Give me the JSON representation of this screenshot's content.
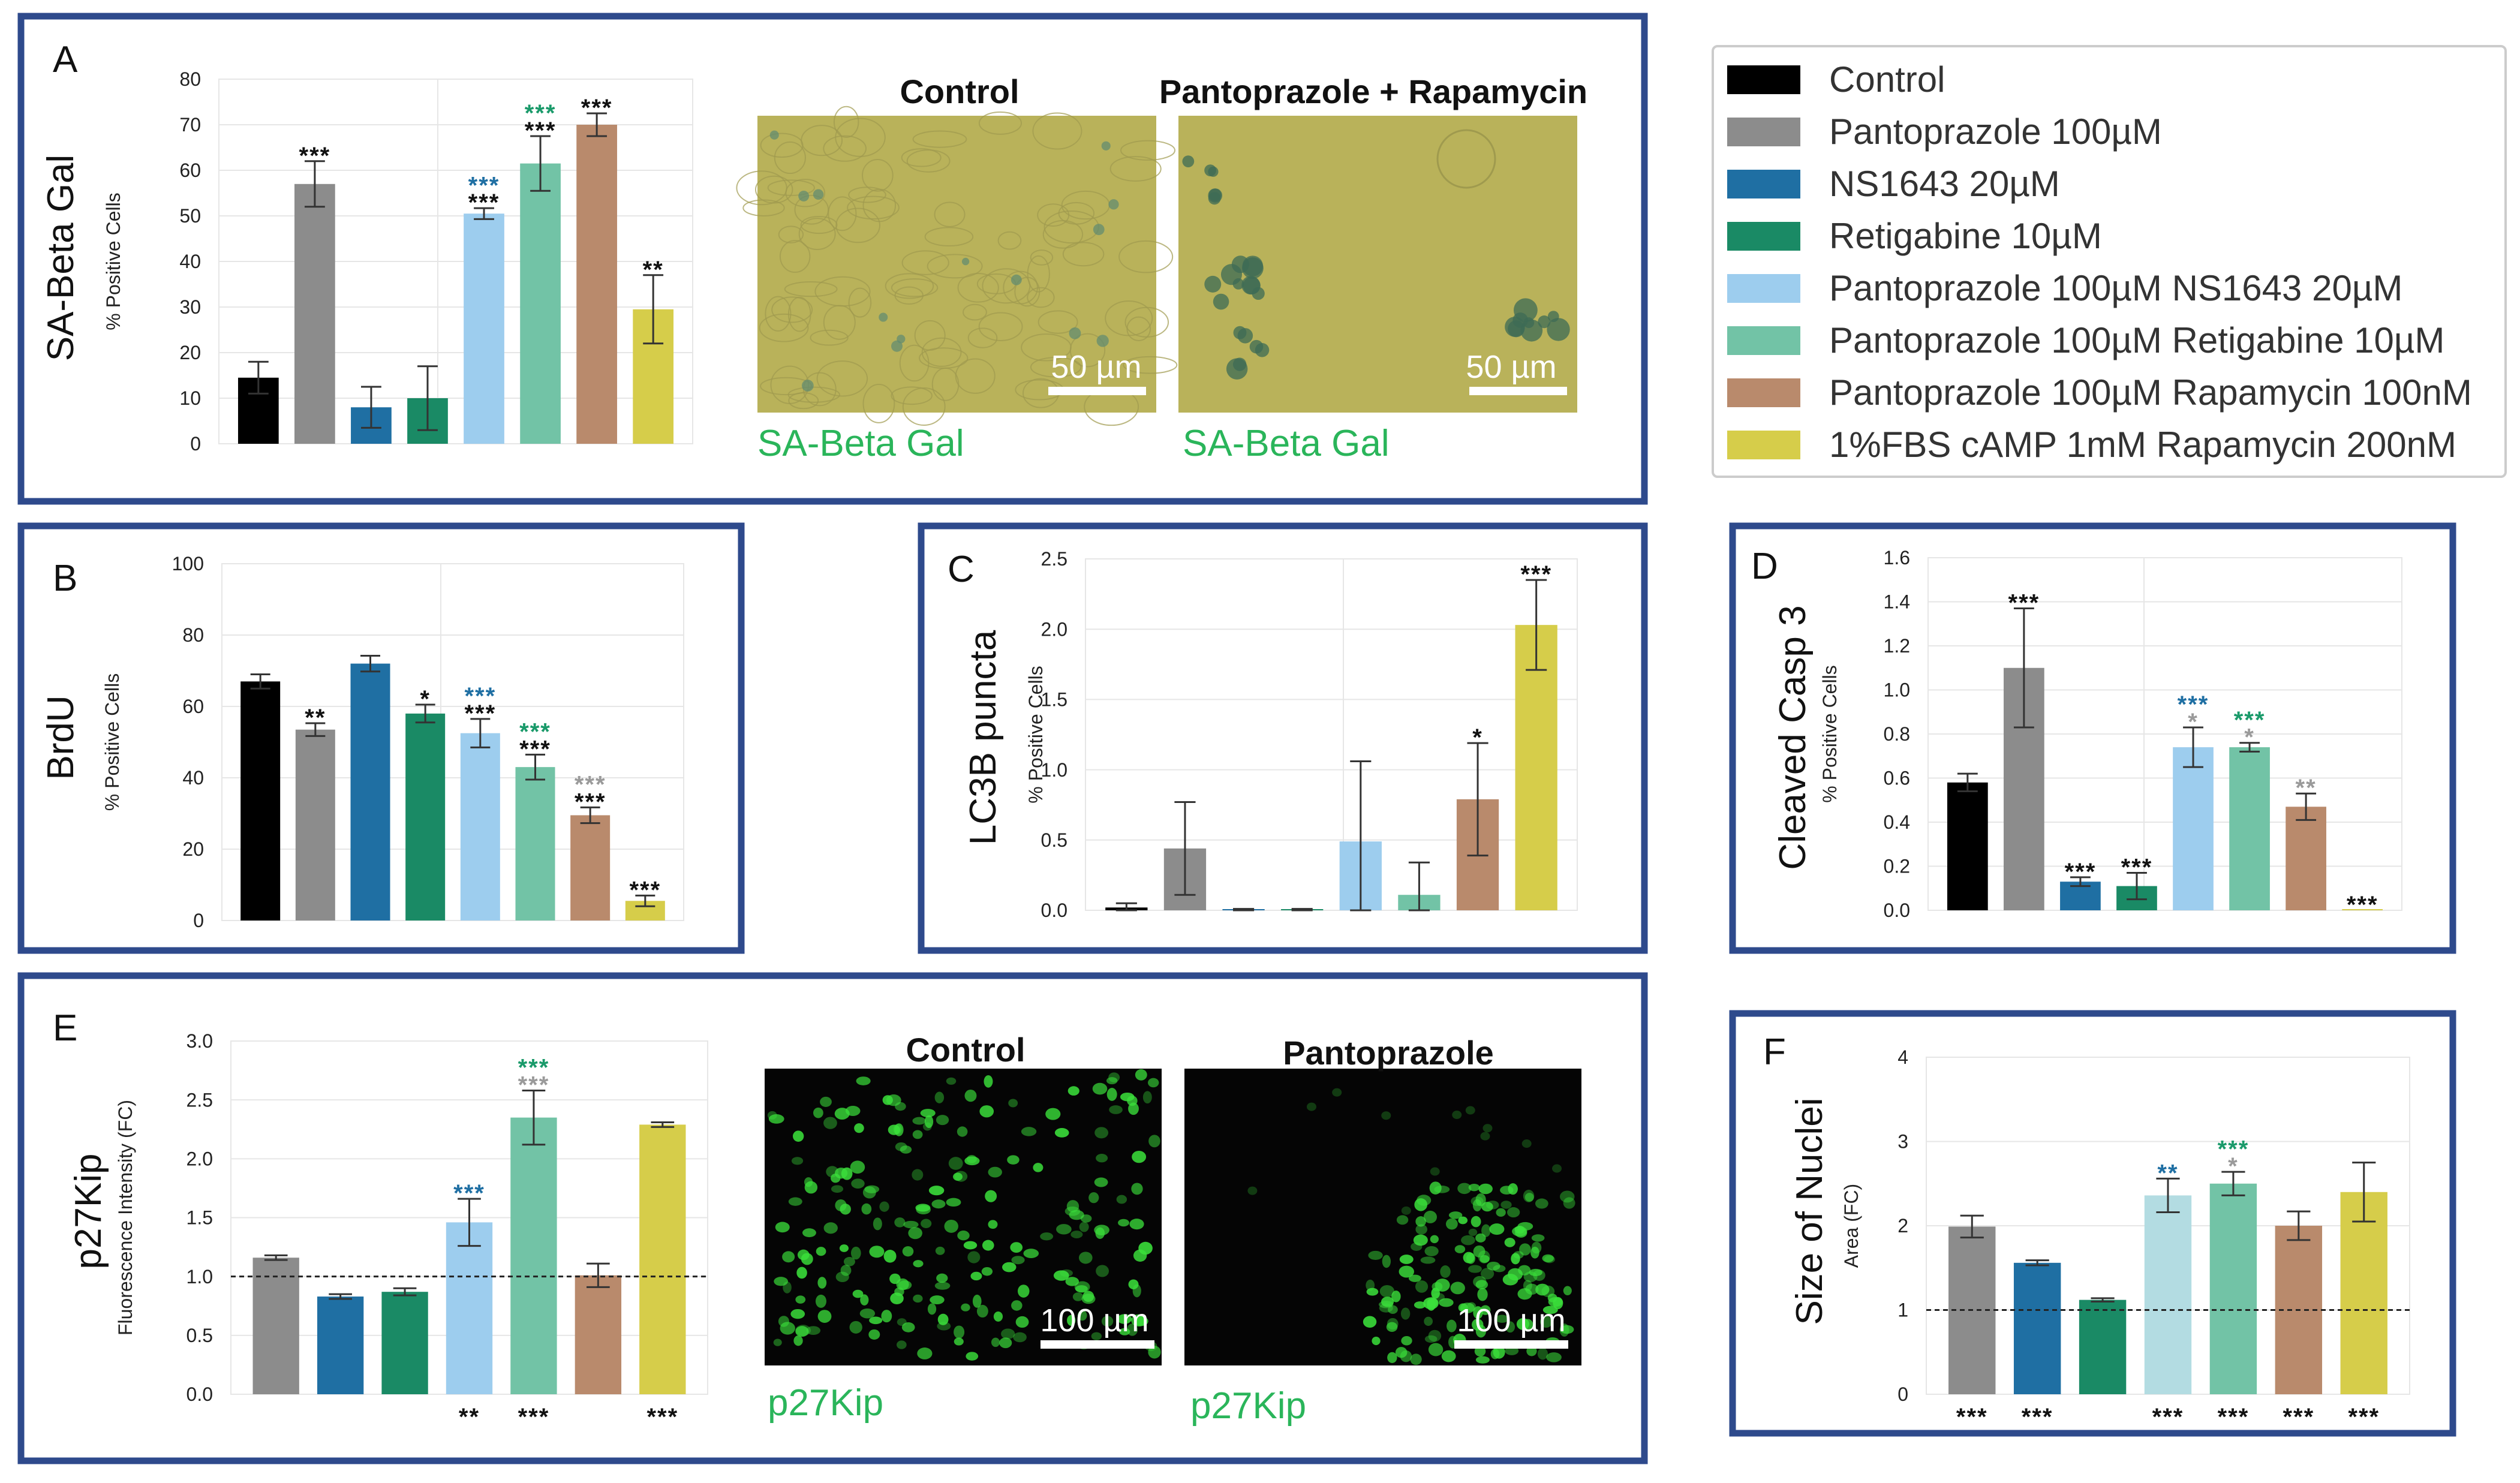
{
  "colors": {
    "frame": "#2E4A8C",
    "Control": "#000000",
    "Pantoprazole 100µM": "#8C8C8C",
    "NS1643 20µM": "#1F6FA3",
    "Retigabine 10µM": "#1A8A65",
    "Pantoprazole 100µM NS1643 20µM": "#9DCDEE",
    "Pantoprazole 100µM Retigabine 10µM": "#72C3A6",
    "Pantoprazole 100µM Rapamycin 100nM": "#B98A6C",
    "1%FBS cAMP 1mM Rapamycin 200nM": "#D6CD4A",
    "light_blue_alt": "#B3DCE2",
    "sig_blue": "#1F6FA3",
    "sig_green": "#1A9A6A",
    "sig_gray": "#9A9A9A",
    "sig_black": "#111111",
    "micro_text": "#2AB55A",
    "sabg_bg": "#B9B25A",
    "fluor_bg": "#050505",
    "fluor_cells": "#3BE03B"
  },
  "legend": {
    "entries": [
      "Control",
      "Pantoprazole 100µM",
      "NS1643 20µM",
      "Retigabine 10µM",
      "Pantoprazole 100µM NS1643 20µM",
      "Pantoprazole 100µM Retigabine 10µM",
      "Pantoprazole 100µM Rapamycin 100nM",
      "1%FBS cAMP 1mM Rapamycin 200nM"
    ]
  },
  "panels": {
    "A": {
      "letter": "A",
      "micrographs": [
        {
          "title": "Control",
          "scale_bar": "50 µm",
          "caption": "SA-Beta Gal"
        },
        {
          "title": "Pantoprazole + Rapamycin",
          "scale_bar": "50 µm",
          "caption": "SA-Beta Gal"
        }
      ]
    },
    "B": {
      "letter": "B"
    },
    "C": {
      "letter": "C"
    },
    "D": {
      "letter": "D"
    },
    "E": {
      "letter": "E",
      "micrographs": [
        {
          "title": "Control",
          "scale_bar": "100 µm",
          "caption": "p27Kip"
        },
        {
          "title": "Pantoprazole",
          "scale_bar": "100 µm",
          "caption": "p27Kip"
        }
      ]
    },
    "F": {
      "letter": "F"
    }
  },
  "chart_data": [
    {
      "id": "A",
      "type": "bar",
      "title": "SA-Beta Gal",
      "ylabel": "% Positive Cells",
      "ylim": [
        0,
        80
      ],
      "yticks": [
        0,
        10,
        20,
        30,
        40,
        50,
        60,
        70,
        80
      ],
      "ytick_labels": [
        "0",
        "10",
        "20",
        "30",
        "40",
        "50",
        "60",
        "70",
        "80"
      ],
      "refline": null,
      "bars": [
        {
          "name": "Control",
          "value": 14.5,
          "err": 3.5,
          "sig_above": []
        },
        {
          "name": "Pantoprazole 100µM",
          "value": 57,
          "err": 5,
          "sig_above": [
            {
              "text": "***",
              "color": "sig_black"
            }
          ]
        },
        {
          "name": "NS1643 20µM",
          "value": 8,
          "err": 4.5,
          "sig_above": []
        },
        {
          "name": "Retigabine 10µM",
          "value": 10,
          "err": 7,
          "sig_above": []
        },
        {
          "name": "Pantoprazole 100µM NS1643 20µM",
          "value": 50.5,
          "err": 1.2,
          "sig_above": [
            {
              "text": "***",
              "color": "sig_black"
            },
            {
              "text": "***",
              "color": "sig_blue"
            }
          ]
        },
        {
          "name": "Pantoprazole 100µM Retigabine 10µM",
          "value": 61.5,
          "err": 6,
          "sig_above": [
            {
              "text": "***",
              "color": "sig_black"
            },
            {
              "text": "***",
              "color": "sig_green"
            }
          ]
        },
        {
          "name": "Pantoprazole 100µM Rapamycin 100nM",
          "value": 70,
          "err": 2.5,
          "sig_above": [
            {
              "text": "***",
              "color": "sig_black"
            }
          ]
        },
        {
          "name": "1%FBS cAMP 1mM Rapamycin 200nM",
          "value": 29.5,
          "err": 7.5,
          "sig_above": [
            {
              "text": "**",
              "color": "sig_black"
            }
          ]
        }
      ]
    },
    {
      "id": "B",
      "type": "bar",
      "title": "BrdU",
      "ylabel": "% Positive Cells",
      "ylim": [
        0,
        100
      ],
      "yticks": [
        0,
        20,
        40,
        60,
        80,
        100
      ],
      "ytick_labels": [
        "0",
        "20",
        "40",
        "60",
        "80",
        "100"
      ],
      "refline": null,
      "bars": [
        {
          "name": "Control",
          "value": 67,
          "err": 2,
          "sig_above": []
        },
        {
          "name": "Pantoprazole 100µM",
          "value": 53.5,
          "err": 1.8,
          "sig_above": [
            {
              "text": "**",
              "color": "sig_black"
            }
          ]
        },
        {
          "name": "NS1643 20µM",
          "value": 72,
          "err": 2.2,
          "sig_above": []
        },
        {
          "name": "Retigabine 10µM",
          "value": 58,
          "err": 2.5,
          "sig_above": [
            {
              "text": "*",
              "color": "sig_black"
            }
          ]
        },
        {
          "name": "Pantoprazole 100µM NS1643 20µM",
          "value": 52.5,
          "err": 4,
          "sig_above": [
            {
              "text": "***",
              "color": "sig_black"
            },
            {
              "text": "***",
              "color": "sig_blue"
            }
          ]
        },
        {
          "name": "Pantoprazole 100µM Retigabine 10µM",
          "value": 43,
          "err": 3.5,
          "sig_above": [
            {
              "text": "***",
              "color": "sig_black"
            },
            {
              "text": "***",
              "color": "sig_green"
            }
          ]
        },
        {
          "name": "Pantoprazole 100µM Rapamycin 100nM",
          "value": 29.5,
          "err": 2.2,
          "sig_above": [
            {
              "text": "***",
              "color": "sig_black"
            },
            {
              "text": "***",
              "color": "sig_gray"
            }
          ]
        },
        {
          "name": "1%FBS cAMP 1mM Rapamycin 200nM",
          "value": 5.5,
          "err": 1.5,
          "sig_above": [
            {
              "text": "***",
              "color": "sig_black"
            }
          ]
        }
      ]
    },
    {
      "id": "C",
      "type": "bar",
      "title": "LC3B puncta",
      "ylabel": "% Positive Cells",
      "ylim": [
        0,
        2.5
      ],
      "yticks": [
        0,
        0.5,
        1.0,
        1.5,
        2.0,
        2.5
      ],
      "ytick_labels": [
        "0.0",
        "0.5",
        "1.0",
        "1.5",
        "2.0",
        "2.5"
      ],
      "refline": null,
      "bars": [
        {
          "name": "Control",
          "value": 0.02,
          "err": 0.03,
          "sig_above": []
        },
        {
          "name": "Pantoprazole 100µM",
          "value": 0.44,
          "err": 0.33,
          "sig_above": []
        },
        {
          "name": "NS1643 20µM",
          "value": 0.005,
          "err": 0.005,
          "sig_above": []
        },
        {
          "name": "Retigabine 10µM",
          "value": 0.005,
          "err": 0.005,
          "sig_above": []
        },
        {
          "name": "Pantoprazole 100µM NS1643 20µM",
          "value": 0.49,
          "err": 0.57,
          "sig_above": []
        },
        {
          "name": "Pantoprazole 100µM Retigabine 10µM",
          "value": 0.11,
          "err": 0.23,
          "sig_above": []
        },
        {
          "name": "Pantoprazole 100µM Rapamycin 100nM",
          "value": 0.79,
          "err": 0.4,
          "sig_above": [
            {
              "text": "*",
              "color": "sig_black"
            }
          ]
        },
        {
          "name": "1%FBS cAMP 1mM Rapamycin 200nM",
          "value": 2.03,
          "err": 0.32,
          "sig_above": [
            {
              "text": "***",
              "color": "sig_black"
            }
          ]
        }
      ]
    },
    {
      "id": "D",
      "type": "bar",
      "title": "Cleaved Casp 3",
      "ylabel": "% Positive Cells",
      "ylim": [
        0,
        1.6
      ],
      "yticks": [
        0,
        0.2,
        0.4,
        0.6,
        0.8,
        1.0,
        1.2,
        1.4,
        1.6
      ],
      "ytick_labels": [
        "0.0",
        "0.2",
        "0.4",
        "0.6",
        "0.8",
        "1.0",
        "1.2",
        "1.4",
        "1.6"
      ],
      "refline": null,
      "bars": [
        {
          "name": "Control",
          "value": 0.58,
          "err": 0.04,
          "sig_above": []
        },
        {
          "name": "Pantoprazole 100µM",
          "value": 1.1,
          "err": 0.27,
          "sig_above": [
            {
              "text": "***",
              "color": "sig_black"
            }
          ]
        },
        {
          "name": "NS1643 20µM",
          "value": 0.13,
          "err": 0.02,
          "sig_above": [
            {
              "text": "***",
              "color": "sig_black"
            }
          ]
        },
        {
          "name": "Retigabine 10µM",
          "value": 0.11,
          "err": 0.06,
          "sig_above": [
            {
              "text": "***",
              "color": "sig_black"
            }
          ]
        },
        {
          "name": "Pantoprazole 100µM NS1643 20µM",
          "value": 0.74,
          "err": 0.09,
          "sig_above": [
            {
              "text": "*",
              "color": "sig_gray"
            },
            {
              "text": "***",
              "color": "sig_blue"
            }
          ]
        },
        {
          "name": "Pantoprazole 100µM Retigabine 10µM",
          "value": 0.74,
          "err": 0.02,
          "sig_above": [
            {
              "text": "*",
              "color": "sig_gray"
            },
            {
              "text": "***",
              "color": "sig_green"
            }
          ]
        },
        {
          "name": "Pantoprazole 100µM Rapamycin 100nM",
          "value": 0.47,
          "err": 0.06,
          "sig_above": [
            {
              "text": "**",
              "color": "sig_gray"
            }
          ]
        },
        {
          "name": "1%FBS cAMP 1mM Rapamycin 200nM",
          "value": 0.0,
          "err": 0.0,
          "sig_above": [
            {
              "text": "***",
              "color": "sig_black"
            }
          ]
        }
      ]
    },
    {
      "id": "E",
      "type": "bar",
      "title": "p27Kip",
      "ylabel": "Fluorescence Intensity (FC)",
      "ylim": [
        0,
        3.0
      ],
      "yticks": [
        0,
        0.5,
        1.0,
        1.5,
        2.0,
        2.5,
        3.0
      ],
      "ytick_labels": [
        "0.0",
        "0.5",
        "1.0",
        "1.5",
        "2.0",
        "2.5",
        "3.0"
      ],
      "refline": 1.0,
      "bars": [
        {
          "name": "Pantoprazole 100µM",
          "value": 1.16,
          "err": 0.02,
          "sig_above": [],
          "sig_below": ""
        },
        {
          "name": "NS1643 20µM",
          "value": 0.83,
          "err": 0.02,
          "sig_above": [],
          "sig_below": ""
        },
        {
          "name": "Retigabine 10µM",
          "value": 0.87,
          "err": 0.03,
          "sig_above": [],
          "sig_below": ""
        },
        {
          "name": "Pantoprazole 100µM NS1643 20µM",
          "value": 1.46,
          "err": 0.2,
          "sig_above": [
            {
              "text": "***",
              "color": "sig_blue"
            }
          ],
          "sig_below": "**"
        },
        {
          "name": "Pantoprazole 100µM Retigabine 10µM",
          "value": 2.35,
          "err": 0.23,
          "sig_above": [
            {
              "text": "***",
              "color": "sig_gray"
            },
            {
              "text": "***",
              "color": "sig_green"
            }
          ],
          "sig_below": "***"
        },
        {
          "name": "Pantoprazole 100µM Rapamycin 100nM",
          "value": 1.01,
          "err": 0.1,
          "sig_above": [],
          "sig_below": ""
        },
        {
          "name": "1%FBS cAMP 1mM Rapamycin 200nM",
          "value": 2.29,
          "err": 0.02,
          "sig_above": [],
          "sig_below": "***"
        }
      ]
    },
    {
      "id": "F",
      "type": "bar",
      "title": "Size of Nuclei",
      "ylabel": "Area (FC)",
      "ylim": [
        0,
        4
      ],
      "yticks": [
        0,
        1,
        2,
        3,
        4
      ],
      "ytick_labels": [
        "0",
        "1",
        "2",
        "3",
        "4"
      ],
      "refline": 1.0,
      "bars": [
        {
          "name": "Pantoprazole 100µM",
          "value": 1.99,
          "err": 0.13,
          "sig_above": [],
          "sig_below": "***"
        },
        {
          "name": "NS1643 20µM",
          "value": 1.56,
          "err": 0.03,
          "sig_above": [],
          "sig_below": "***"
        },
        {
          "name": "Retigabine 10µM",
          "value": 1.12,
          "err": 0.02,
          "sig_above": [],
          "sig_below": ""
        },
        {
          "name": "Pantoprazole 100µM NS1643 20µM",
          "value": 2.36,
          "err": 0.2,
          "sig_above": [
            {
              "text": "**",
              "color": "sig_blue"
            }
          ],
          "sig_below": "***",
          "color_override": "light_blue_alt"
        },
        {
          "name": "Pantoprazole 100µM Retigabine 10µM",
          "value": 2.5,
          "err": 0.14,
          "sig_above": [
            {
              "text": "*",
              "color": "sig_gray"
            },
            {
              "text": "***",
              "color": "sig_green"
            }
          ],
          "sig_below": "***"
        },
        {
          "name": "Pantoprazole 100µM Rapamycin 100nM",
          "value": 2.0,
          "err": 0.17,
          "sig_above": [],
          "sig_below": "***"
        },
        {
          "name": "1%FBS cAMP 1mM Rapamycin 200nM",
          "value": 2.4,
          "err": 0.35,
          "sig_above": [],
          "sig_below": "***"
        }
      ]
    }
  ]
}
